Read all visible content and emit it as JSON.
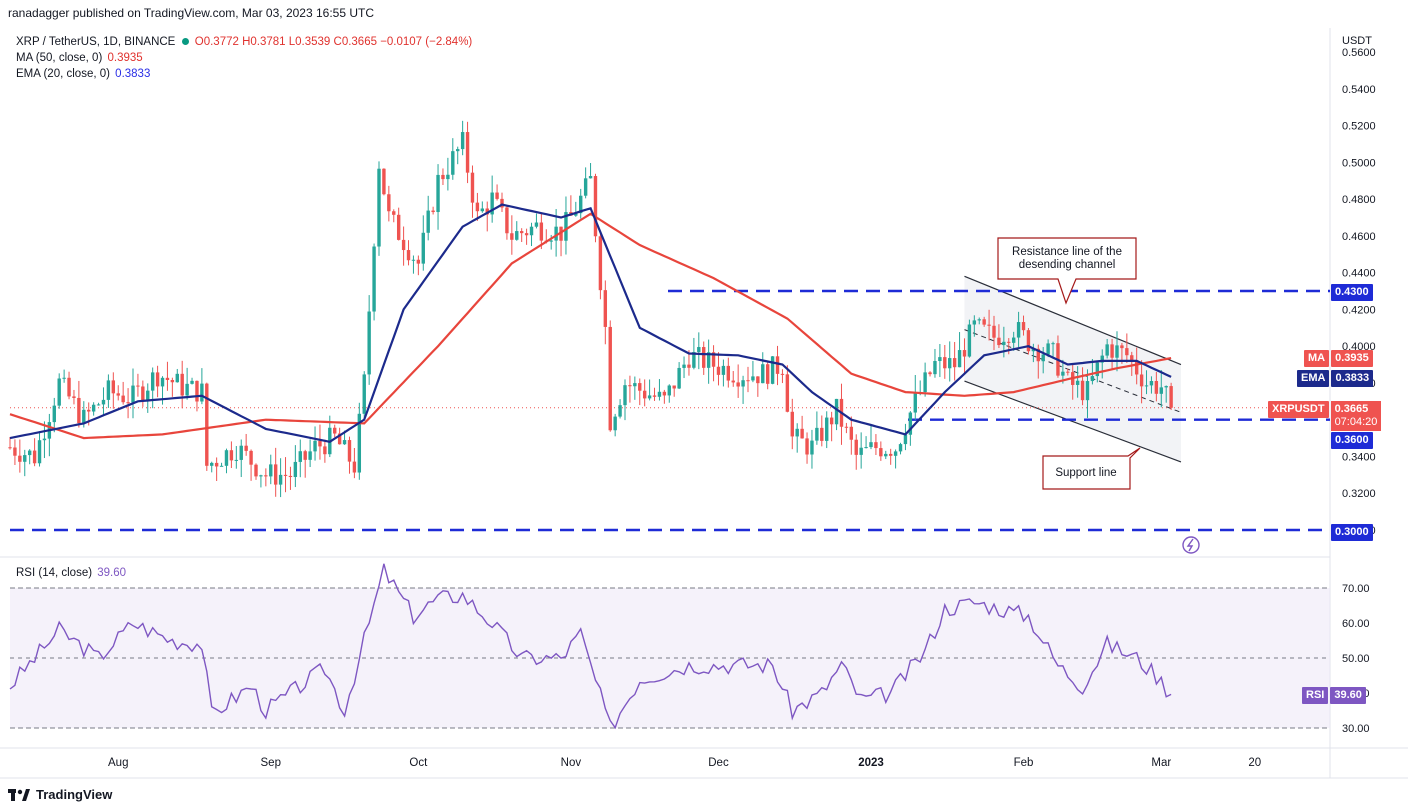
{
  "header": {
    "published": "ranadagger published on TradingView.com, Mar 03, 2023 16:55 UTC"
  },
  "legend": {
    "symbol": "XRP / TetherUS, 1D, BINANCE",
    "ohlc": "O0.3772 H0.3781 L0.3539 C0.3665 −0.0107 (−2.84%)",
    "ma_label": "MA (50, close, 0)",
    "ma_value": "0.3935",
    "ema_label": "EMA (20, close, 0)",
    "ema_value": "0.3833",
    "rsi_label": "RSI (14, close)",
    "rsi_value": "39.60"
  },
  "axis": {
    "currency": "USDT",
    "price_ticks": [
      "0.5600",
      "0.5400",
      "0.5200",
      "0.5000",
      "0.4800",
      "0.4600",
      "0.4400",
      "0.4200",
      "0.4000",
      "0.3800",
      "0.3600",
      "0.3400",
      "0.3200",
      "0.3000"
    ],
    "rsi_ticks": [
      "70.00",
      "60.00",
      "50.00",
      "40.00",
      "30.00"
    ],
    "time_ticks": [
      "Aug",
      "Sep",
      "Oct",
      "Nov",
      "Dec",
      "2023",
      "Feb",
      "Mar",
      "20"
    ]
  },
  "tags": {
    "level_430": "0.4300",
    "ma_name": "MA",
    "ma_val": "0.3935",
    "ema_name": "EMA",
    "ema_val": "0.3833",
    "pair_name": "XRPUSDT",
    "pair_val": "0.3665",
    "countdown": "07:04:20",
    "level_360": "0.3600",
    "level_300": "0.3000",
    "rsi_name": "RSI",
    "rsi_val": "39.60"
  },
  "annotations": {
    "resistance": [
      "Resistance line of the",
      "desending channel"
    ],
    "support": "Support line"
  },
  "footer": {
    "brand": "TradingView"
  },
  "colors": {
    "up": "#26a69a",
    "down": "#ef5350",
    "ema": "#1c2a8c",
    "ma": "#e8453c",
    "rsi": "#7e57c2",
    "dashed": "#1e2bd6"
  },
  "chart_data": {
    "type": "candlestick",
    "symbol": "XRP / TetherUS",
    "interval": "1D",
    "ylim": [
      0.295,
      0.565
    ],
    "horizontal_levels": [
      0.43,
      0.36,
      0.3
    ],
    "channel": {
      "upper": [
        [
          "2023-01-20",
          0.438
        ],
        [
          "2023-03-05",
          0.39
        ]
      ],
      "lower": [
        [
          "2023-01-20",
          0.381
        ],
        [
          "2023-03-05",
          0.337
        ]
      ],
      "mid": [
        [
          "2023-01-20",
          0.409
        ],
        [
          "2023-03-05",
          0.364
        ]
      ]
    },
    "close_anchors": [
      [
        "2022-07-10",
        0.345
      ],
      [
        "2022-07-15",
        0.34
      ],
      [
        "2022-07-20",
        0.38
      ],
      [
        "2022-07-25",
        0.36
      ],
      [
        "2022-07-30",
        0.375
      ],
      [
        "2022-08-04",
        0.372
      ],
      [
        "2022-08-09",
        0.385
      ],
      [
        "2022-08-14",
        0.378
      ],
      [
        "2022-08-18",
        0.375
      ],
      [
        "2022-08-19",
        0.335
      ],
      [
        "2022-08-25",
        0.345
      ],
      [
        "2022-08-31",
        0.33
      ],
      [
        "2022-09-05",
        0.33
      ],
      [
        "2022-09-10",
        0.345
      ],
      [
        "2022-09-14",
        0.35
      ],
      [
        "2022-09-18",
        0.335
      ],
      [
        "2022-09-20",
        0.38
      ],
      [
        "2022-09-23",
        0.5
      ],
      [
        "2022-09-25",
        0.47
      ],
      [
        "2022-10-01",
        0.445
      ],
      [
        "2022-10-05",
        0.49
      ],
      [
        "2022-10-10",
        0.51
      ],
      [
        "2022-10-13",
        0.47
      ],
      [
        "2022-10-16",
        0.48
      ],
      [
        "2022-10-20",
        0.46
      ],
      [
        "2022-10-25",
        0.465
      ],
      [
        "2022-10-30",
        0.462
      ],
      [
        "2022-11-01",
        0.47
      ],
      [
        "2022-11-05",
        0.49
      ],
      [
        "2022-11-08",
        0.41
      ],
      [
        "2022-11-09",
        0.36
      ],
      [
        "2022-11-12",
        0.38
      ],
      [
        "2022-11-16",
        0.375
      ],
      [
        "2022-11-20",
        0.37
      ],
      [
        "2022-11-25",
        0.395
      ],
      [
        "2022-11-30",
        0.39
      ],
      [
        "2022-12-05",
        0.385
      ],
      [
        "2022-12-10",
        0.385
      ],
      [
        "2022-12-14",
        0.39
      ],
      [
        "2022-12-16",
        0.35
      ],
      [
        "2022-12-20",
        0.345
      ],
      [
        "2022-12-25",
        0.365
      ],
      [
        "2022-12-29",
        0.34
      ],
      [
        "2023-01-02",
        0.345
      ],
      [
        "2023-01-06",
        0.345
      ],
      [
        "2023-01-10",
        0.37
      ],
      [
        "2023-01-14",
        0.39
      ],
      [
        "2023-01-18",
        0.39
      ],
      [
        "2023-01-22",
        0.41
      ],
      [
        "2023-01-26",
        0.405
      ],
      [
        "2023-01-30",
        0.41
      ],
      [
        "2023-02-03",
        0.4
      ],
      [
        "2023-02-07",
        0.395
      ],
      [
        "2023-02-10",
        0.38
      ],
      [
        "2023-02-14",
        0.375
      ],
      [
        "2023-02-18",
        0.4
      ],
      [
        "2023-02-22",
        0.395
      ],
      [
        "2023-02-26",
        0.38
      ],
      [
        "2023-03-01",
        0.378
      ],
      [
        "2023-03-03",
        0.3665
      ]
    ],
    "ema20_anchors": [
      [
        "2022-07-10",
        0.35
      ],
      [
        "2022-07-25",
        0.358
      ],
      [
        "2022-08-05",
        0.37
      ],
      [
        "2022-08-18",
        0.373
      ],
      [
        "2022-08-31",
        0.355
      ],
      [
        "2022-09-13",
        0.348
      ],
      [
        "2022-09-20",
        0.36
      ],
      [
        "2022-09-28",
        0.42
      ],
      [
        "2022-10-10",
        0.465
      ],
      [
        "2022-10-18",
        0.477
      ],
      [
        "2022-10-30",
        0.47
      ],
      [
        "2022-11-05",
        0.475
      ],
      [
        "2022-11-15",
        0.41
      ],
      [
        "2022-11-25",
        0.396
      ],
      [
        "2022-12-05",
        0.395
      ],
      [
        "2022-12-14",
        0.39
      ],
      [
        "2022-12-20",
        0.375
      ],
      [
        "2022-12-28",
        0.36
      ],
      [
        "2023-01-08",
        0.352
      ],
      [
        "2023-01-16",
        0.375
      ],
      [
        "2023-01-24",
        0.395
      ],
      [
        "2023-02-02",
        0.4
      ],
      [
        "2023-02-10",
        0.39
      ],
      [
        "2023-02-17",
        0.392
      ],
      [
        "2023-02-24",
        0.392
      ],
      [
        "2023-03-03",
        0.3833
      ]
    ],
    "ma50_anchors": [
      [
        "2022-07-10",
        0.363
      ],
      [
        "2022-07-25",
        0.35
      ],
      [
        "2022-08-10",
        0.352
      ],
      [
        "2022-08-31",
        0.36
      ],
      [
        "2022-09-20",
        0.358
      ],
      [
        "2022-10-05",
        0.4
      ],
      [
        "2022-10-20",
        0.445
      ],
      [
        "2022-11-05",
        0.472
      ],
      [
        "2022-11-15",
        0.455
      ],
      [
        "2022-11-30",
        0.437
      ],
      [
        "2022-12-15",
        0.415
      ],
      [
        "2022-12-28",
        0.385
      ],
      [
        "2023-01-08",
        0.375
      ],
      [
        "2023-01-20",
        0.373
      ],
      [
        "2023-01-30",
        0.375
      ],
      [
        "2023-02-10",
        0.382
      ],
      [
        "2023-02-20",
        0.388
      ],
      [
        "2023-03-03",
        0.3935
      ]
    ],
    "rsi14_anchors": [
      [
        "2022-07-10",
        42
      ],
      [
        "2022-07-20",
        58
      ],
      [
        "2022-07-28",
        50
      ],
      [
        "2022-08-04",
        60
      ],
      [
        "2022-08-12",
        55
      ],
      [
        "2022-08-18",
        54
      ],
      [
        "2022-08-20",
        34
      ],
      [
        "2022-08-28",
        42
      ],
      [
        "2022-08-31",
        35
      ],
      [
        "2022-09-05",
        40
      ],
      [
        "2022-09-12",
        47
      ],
      [
        "2022-09-16",
        35
      ],
      [
        "2022-09-20",
        55
      ],
      [
        "2022-09-24",
        75
      ],
      [
        "2022-09-30",
        62
      ],
      [
        "2022-10-05",
        67
      ],
      [
        "2022-10-10",
        68
      ],
      [
        "2022-10-16",
        60
      ],
      [
        "2022-10-22",
        50
      ],
      [
        "2022-10-30",
        50
      ],
      [
        "2022-11-03",
        57
      ],
      [
        "2022-11-09",
        30
      ],
      [
        "2022-11-15",
        44
      ],
      [
        "2022-11-25",
        48
      ],
      [
        "2022-12-05",
        48
      ],
      [
        "2022-12-12",
        48
      ],
      [
        "2022-12-16",
        35
      ],
      [
        "2022-12-22",
        40
      ],
      [
        "2022-12-26",
        48
      ],
      [
        "2022-12-30",
        38
      ],
      [
        "2023-01-05",
        40
      ],
      [
        "2023-01-12",
        52
      ],
      [
        "2023-01-16",
        64
      ],
      [
        "2023-01-22",
        66
      ],
      [
        "2023-02-02",
        62
      ],
      [
        "2023-02-08",
        48
      ],
      [
        "2023-02-13",
        42
      ],
      [
        "2023-02-18",
        54
      ],
      [
        "2023-02-24",
        50
      ],
      [
        "2023-02-28",
        45
      ],
      [
        "2023-03-03",
        39.6
      ]
    ],
    "rsi_bands": [
      30,
      50,
      70
    ]
  }
}
